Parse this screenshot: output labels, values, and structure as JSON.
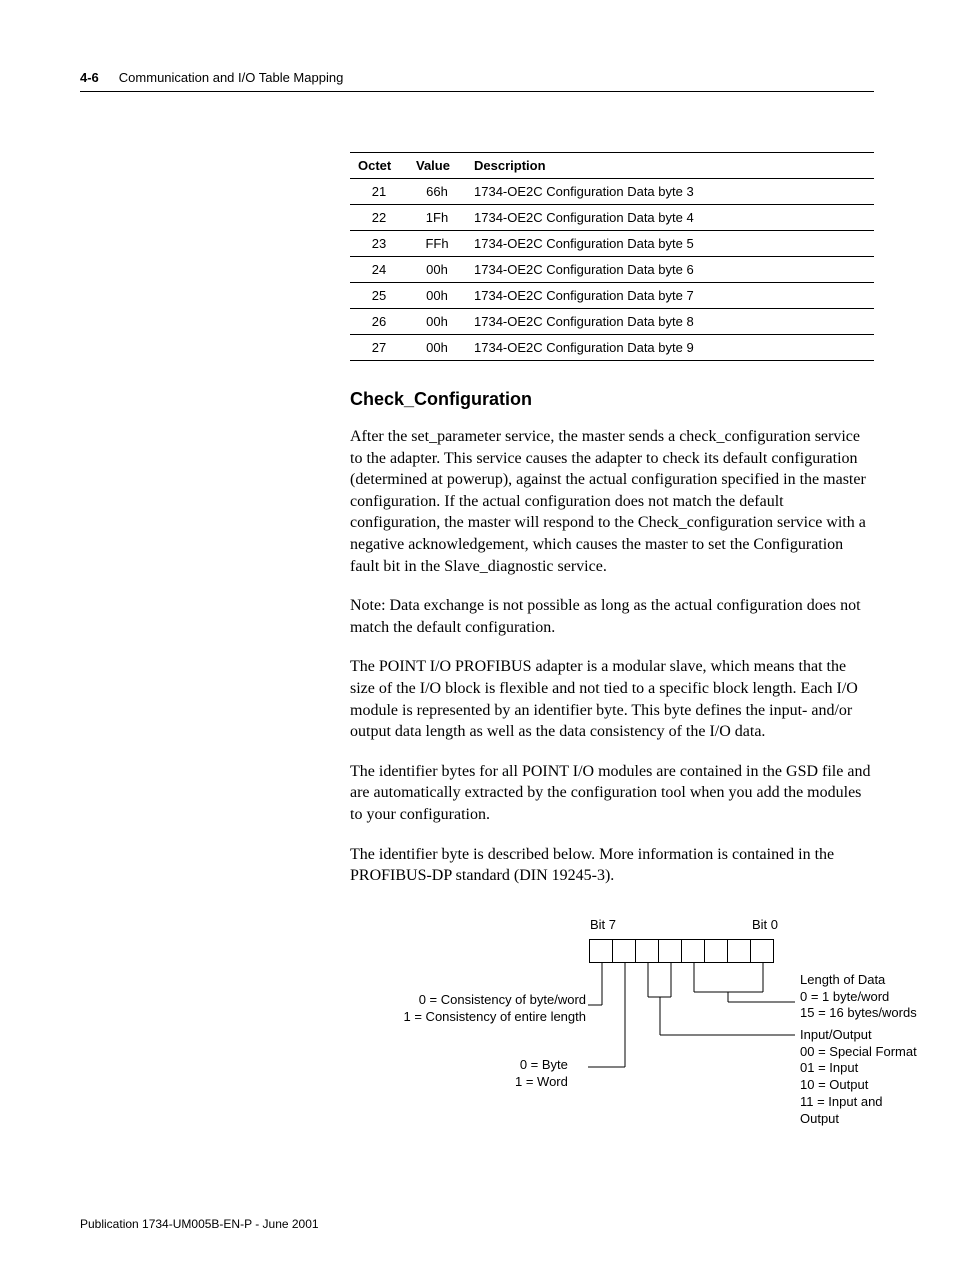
{
  "header": {
    "page_number": "4-6",
    "chapter_title": "Communication and I/O Table Mapping"
  },
  "table": {
    "columns": [
      "Octet",
      "Value",
      "Description"
    ],
    "rows": [
      [
        "21",
        "66h",
        "1734-OE2C Configuration Data byte 3"
      ],
      [
        "22",
        "1Fh",
        "1734-OE2C Configuration Data byte 4"
      ],
      [
        "23",
        "FFh",
        "1734-OE2C Configuration Data byte 5"
      ],
      [
        "24",
        "00h",
        "1734-OE2C Configuration Data byte 6"
      ],
      [
        "25",
        "00h",
        "1734-OE2C Configuration Data byte 7"
      ],
      [
        "26",
        "00h",
        "1734-OE2C Configuration Data byte 8"
      ],
      [
        "27",
        "00h",
        "1734-OE2C Configuration Data byte 9"
      ]
    ]
  },
  "section": {
    "heading": "Check_Configuration",
    "paragraphs": [
      "After the set_parameter service, the master sends a check_configuration service to the adapter. This service causes the adapter to check its default configuration (determined at powerup), against the actual configuration specified in the master configuration. If the actual configuration does not match the default configuration, the master will respond to the Check_configuration service with a negative acknowledgement, which causes the  master to set the Configuration fault bit in the Slave_diagnostic service.",
      "Note: Data exchange is not possible as long as the actual configuration does not match the default configuration.",
      "The POINT I/O PROFIBUS adapter is a modular slave, which means that the size of the I/O block is flexible and not tied to a specific block length. Each I/O module is represented by an identifier byte. This byte defines the input- and/or output data length as well as the data consistency of the I/O data.",
      "The identifier bytes for all POINT I/O modules are contained in the GSD file and are automatically extracted by the configuration tool when you add the modules to your configuration.",
      "The identifier byte is described below. More information is contained in the PROFIBUS-DP standard (DIN 19245-3)."
    ]
  },
  "diagram": {
    "bit7_label": "Bit 7",
    "bit0_label": "Bit 0",
    "consistency_label": "0 = Consistency of byte/word\n1 = Consistency of entire length",
    "byte_word_label": "0 = Byte\n1 = Word",
    "length_label": "Length of Data\n0 = 1 byte/word\n15 = 16 bytes/words",
    "io_label": "Input/Output\n00 = Special Format\n01 = Input\n10 = Output\n11 = Input and Output"
  },
  "footer": {
    "publication": "Publication 1734-UM005B-EN-P - June 2001"
  }
}
